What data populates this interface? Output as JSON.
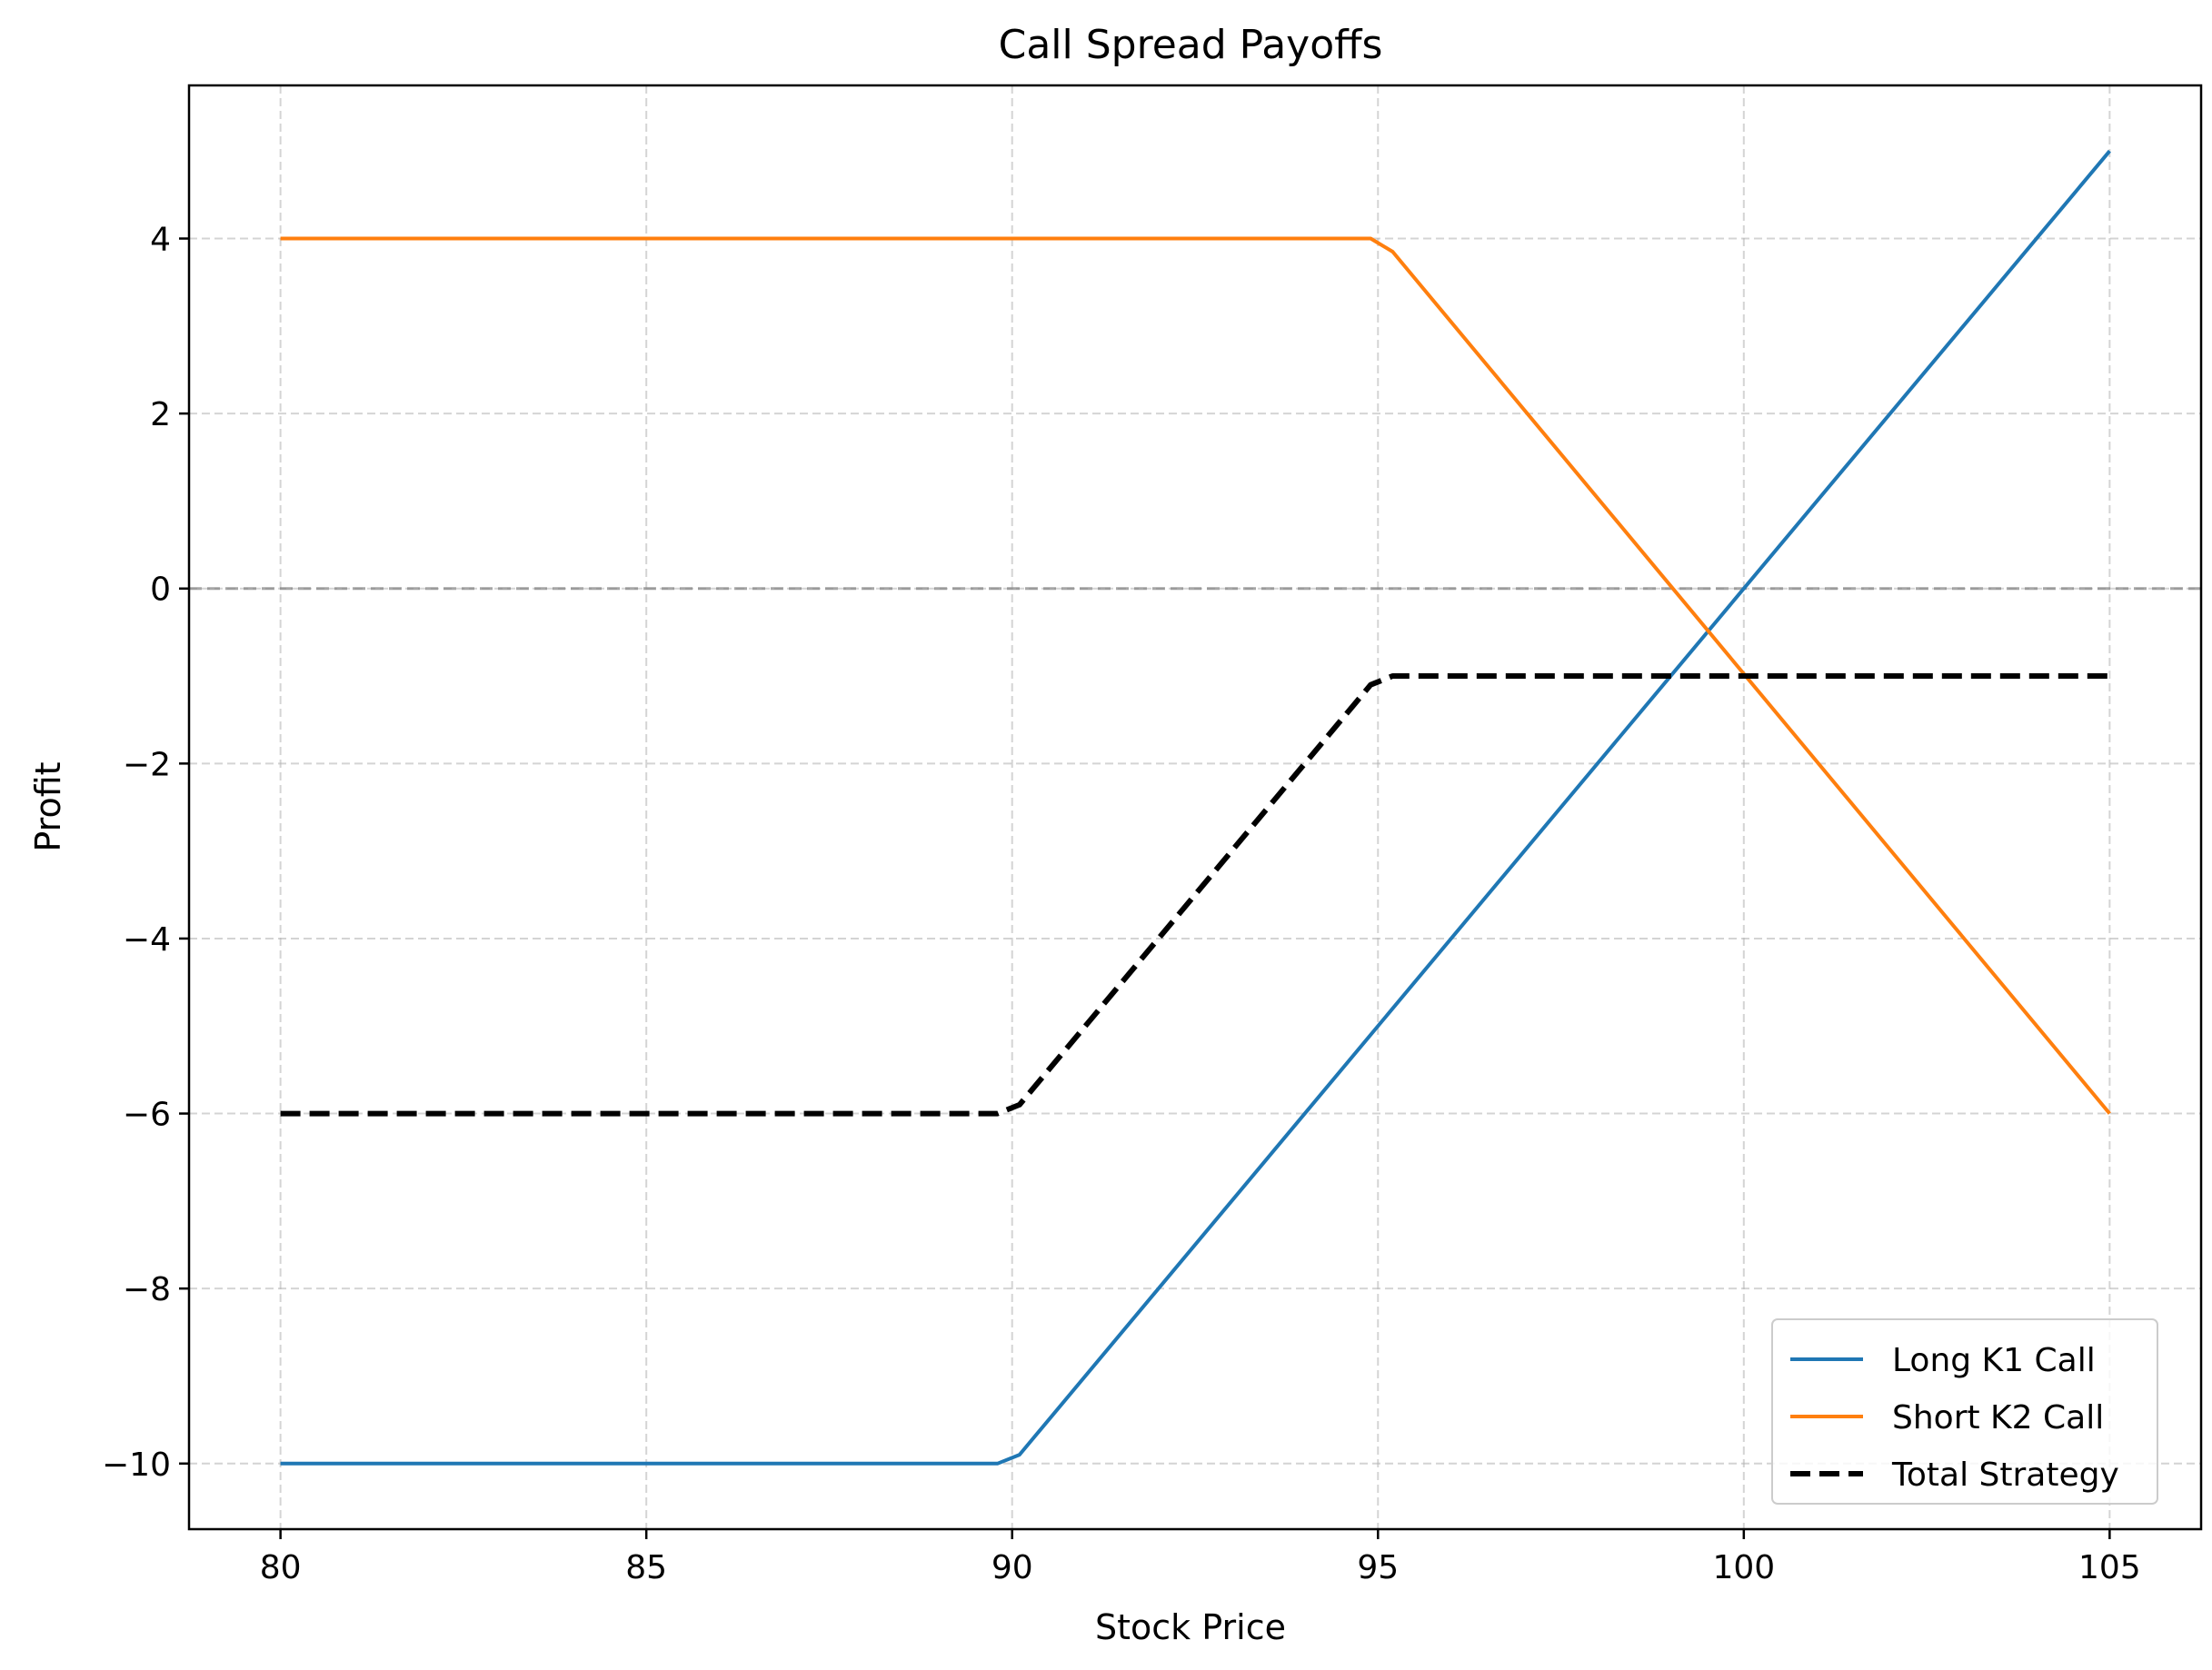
{
  "chart_data": {
    "type": "line",
    "title": "Call Spread Payoffs",
    "xlabel": "Stock Price",
    "ylabel": "Profit",
    "xlim": [
      78.75,
      106.25
    ],
    "ylim": [
      -10.75,
      5.75
    ],
    "xticks": [
      80,
      85,
      90,
      95,
      100,
      105
    ],
    "xtick_labels": [
      "80",
      "85",
      "90",
      "95",
      "100",
      "105"
    ],
    "yticks": [
      -10,
      -8,
      -6,
      -4,
      -2,
      0,
      2,
      4
    ],
    "ytick_labels": [
      "−10",
      "−8",
      "−6",
      "−4",
      "−2",
      "0",
      "2",
      "4"
    ],
    "grid": true,
    "legend_position": "lower-right",
    "reference_line": {
      "y": 0,
      "color": "#808080",
      "style": "dashed"
    },
    "series": [
      {
        "name": "Long K1 Call",
        "color": "#1f77b4",
        "style": "solid",
        "x": [
          80,
          89.8,
          90.1,
          105
        ],
        "y": [
          -10,
          -10,
          -9.9,
          5
        ]
      },
      {
        "name": "Short K2 Call",
        "color": "#ff7f0e",
        "style": "solid",
        "x": [
          80,
          94.9,
          95.2,
          105
        ],
        "y": [
          4,
          4,
          3.85,
          -6
        ]
      },
      {
        "name": "Total Strategy",
        "color": "#000000",
        "style": "dashed",
        "x": [
          80,
          89.8,
          90.1,
          94.9,
          95.2,
          105
        ],
        "y": [
          -6,
          -6,
          -5.9,
          -1.1,
          -1,
          -1
        ]
      }
    ]
  }
}
